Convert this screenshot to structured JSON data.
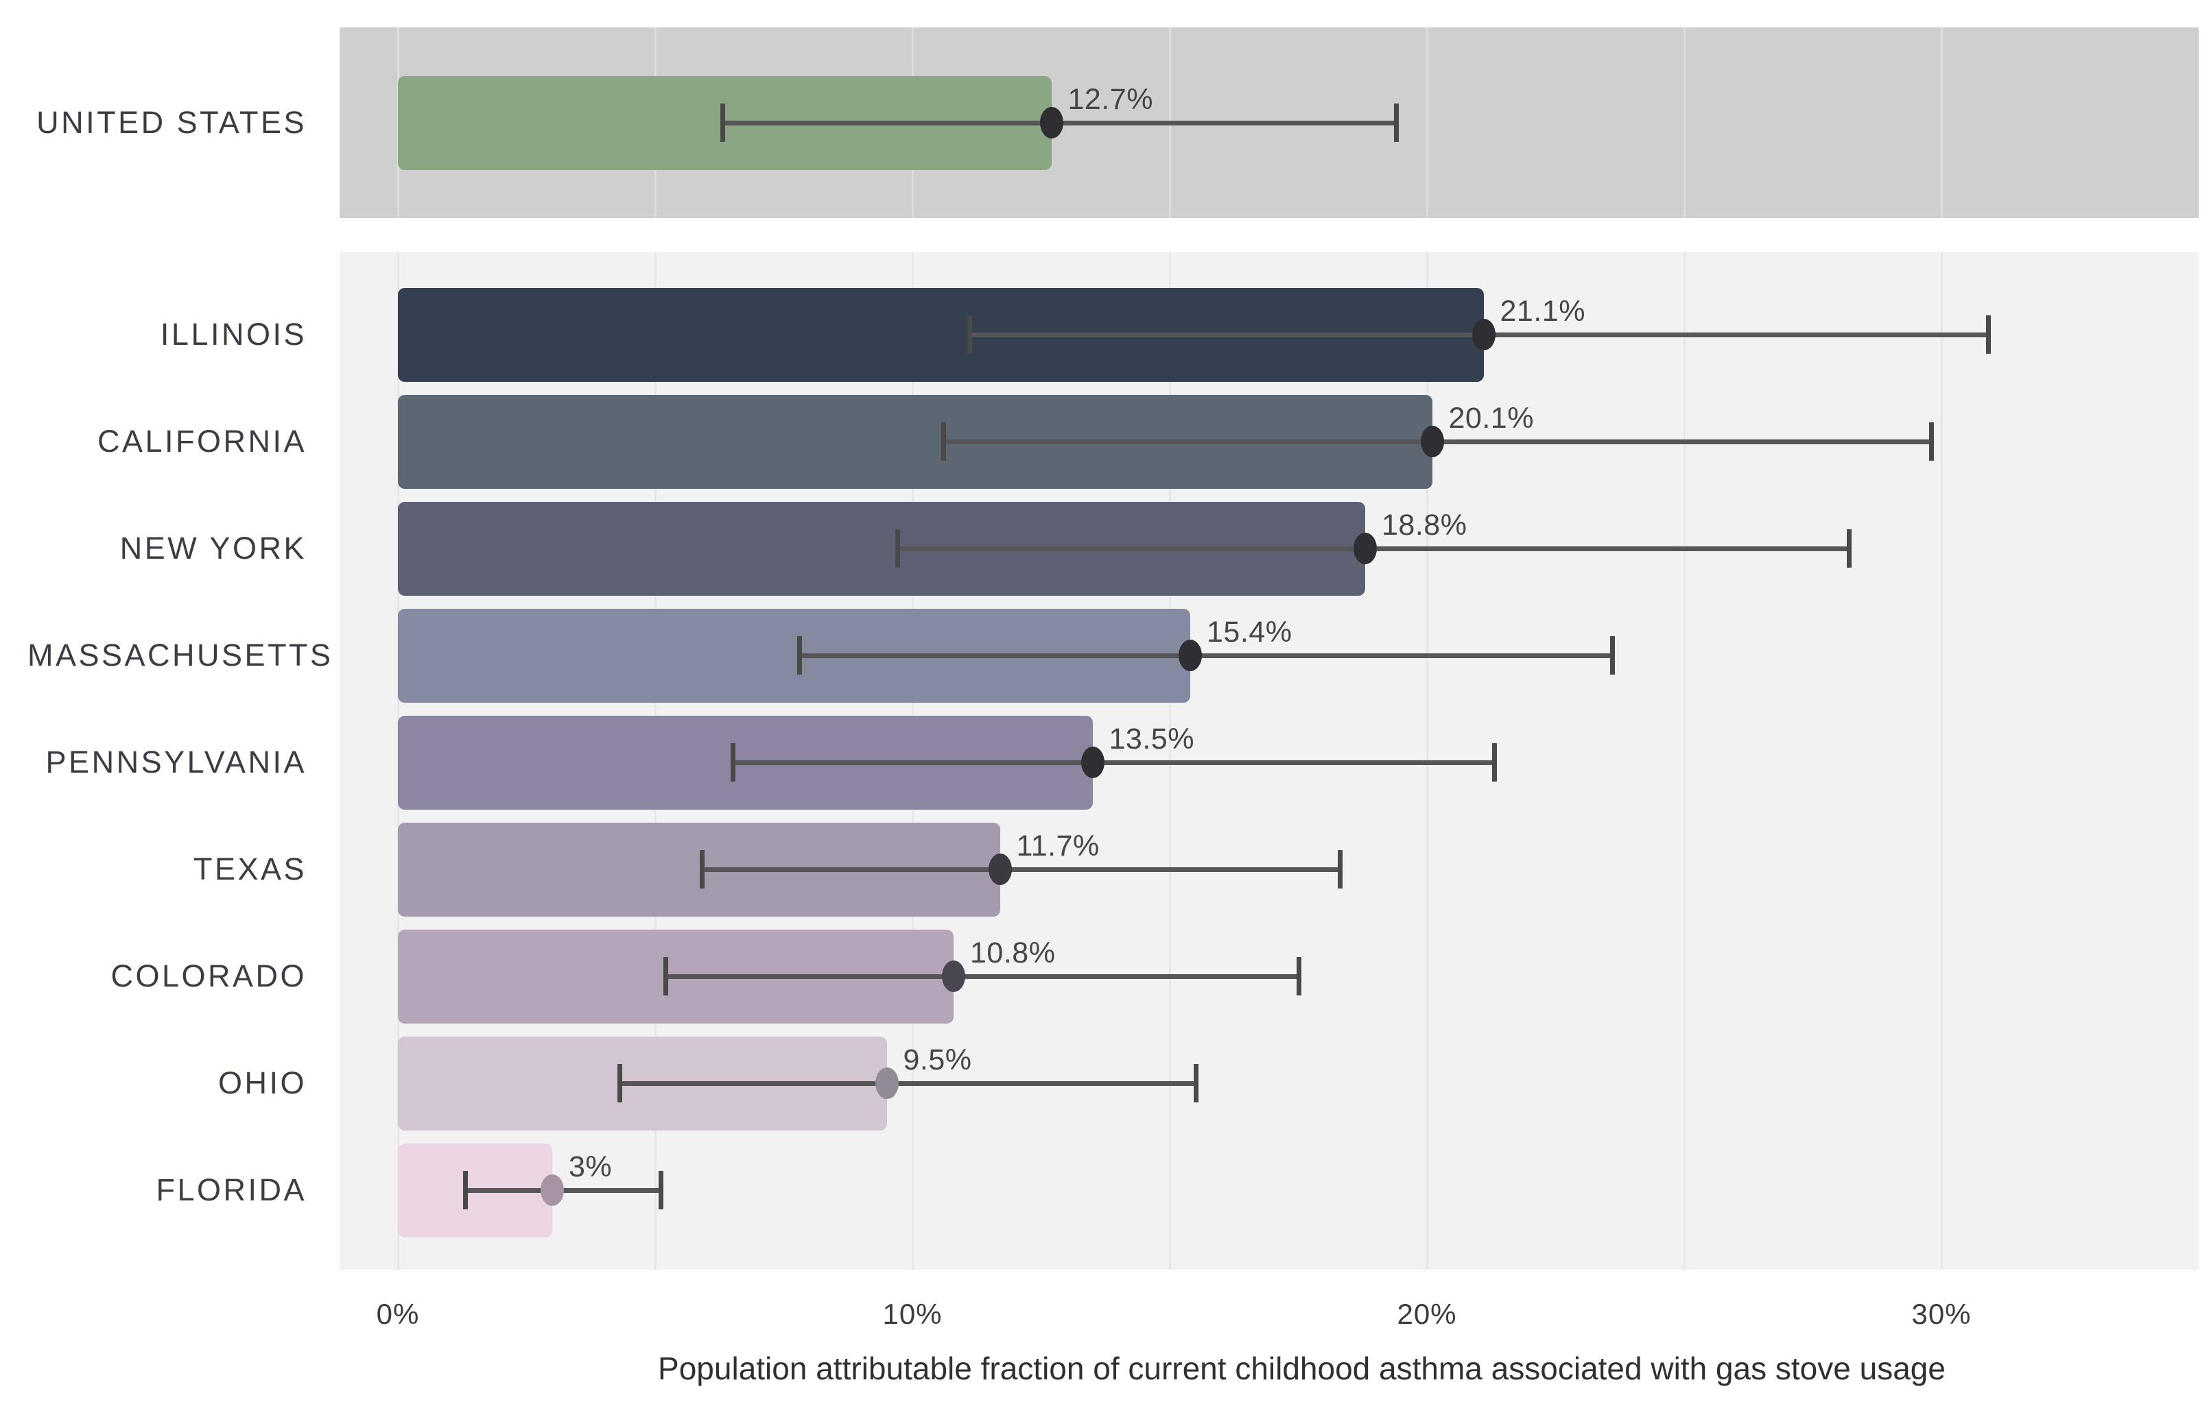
{
  "chart_data": {
    "type": "bar",
    "orientation": "horizontal",
    "xlabel": "Population attributable fraction of current childhood asthma associated with gas stove usage",
    "xlim": [
      0,
      35
    ],
    "grid": true,
    "gridline_step": 5,
    "unit": "%",
    "x_ticks": [
      {
        "value": 0,
        "label": "0%"
      },
      {
        "value": 10,
        "label": "10%"
      },
      {
        "value": 20,
        "label": "20%"
      },
      {
        "value": 30,
        "label": "30%"
      }
    ],
    "groups": [
      {
        "name": "national",
        "rows": [
          {
            "label": "UNITED STATES",
            "value": 12.7,
            "value_label": "12.7%",
            "ci_low": 6.3,
            "ci_high": 19.4,
            "bar_color": "#8aa682",
            "dot_color": "#2e2e33"
          }
        ]
      },
      {
        "name": "states",
        "rows": [
          {
            "label": "ILLINOIS",
            "value": 21.1,
            "value_label": "21.1%",
            "ci_low": 11.1,
            "ci_high": 30.9,
            "bar_color": "#344050",
            "dot_color": "#2e2e33"
          },
          {
            "label": "CALIFORNIA",
            "value": 20.1,
            "value_label": "20.1%",
            "ci_low": 10.6,
            "ci_high": 29.8,
            "bar_color": "#5c6772",
            "dot_color": "#2e2e33"
          },
          {
            "label": "NEW YORK",
            "value": 18.8,
            "value_label": "18.8%",
            "ci_low": 9.7,
            "ci_high": 28.2,
            "bar_color": "#5e6074",
            "dot_color": "#2e2e33"
          },
          {
            "label": "MASSACHUSETTS",
            "value": 15.4,
            "value_label": "15.4%",
            "ci_low": 7.8,
            "ci_high": 23.6,
            "bar_color": "#868aa0",
            "dot_color": "#2e2e33"
          },
          {
            "label": "PENNSYLVANIA",
            "value": 13.5,
            "value_label": "13.5%",
            "ci_low": 6.5,
            "ci_high": 21.3,
            "bar_color": "#8e86a0",
            "dot_color": "#2e2e33"
          },
          {
            "label": "TEXAS",
            "value": 11.7,
            "value_label": "11.7%",
            "ci_low": 5.9,
            "ci_high": 18.3,
            "bar_color": "#a49bae",
            "dot_color": "#3a3a40"
          },
          {
            "label": "COLORADO",
            "value": 10.8,
            "value_label": "10.8%",
            "ci_low": 5.2,
            "ci_high": 17.5,
            "bar_color": "#b5a5b8",
            "dot_color": "#4a4650"
          },
          {
            "label": "OHIO",
            "value": 9.5,
            "value_label": "9.5%",
            "ci_low": 4.3,
            "ci_high": 15.5,
            "bar_color": "#d3c6d3",
            "dot_color": "#8f8a95"
          },
          {
            "label": "FLORIDA",
            "value": 3,
            "value_label": "3%",
            "ci_low": 1.3,
            "ci_high": 5.1,
            "bar_color": "#ecd5e2",
            "dot_color": "#a693a4"
          }
        ]
      }
    ]
  },
  "style": {
    "band_national_color": "#cfcfcf",
    "band_states_color": "#f2f2f2",
    "gridline_on_national": "#dddddd",
    "gridline_on_states": "#e7e7e7",
    "whisker_color": "#565656",
    "cap_color": "#494949",
    "value_label_color": "#45454a",
    "category_label_color": "#3a3e44",
    "tick_label_color": "#3c3c3c",
    "axis_label_color": "#303030"
  }
}
